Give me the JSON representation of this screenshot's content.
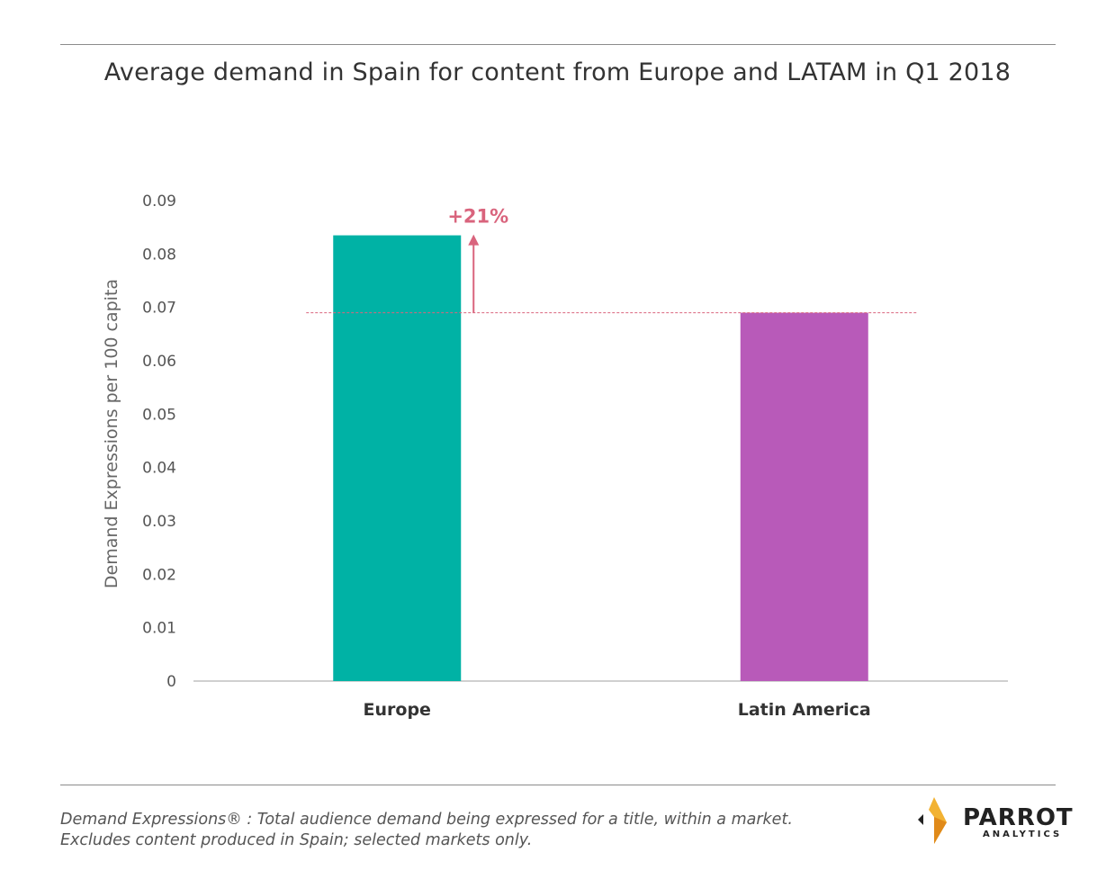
{
  "title": "Average demand in Spain for content from Europe and LATAM in Q1 2018",
  "chart_data": {
    "type": "bar",
    "categories": [
      "Europe",
      "Latin America"
    ],
    "values": [
      0.0835,
      0.069
    ],
    "colors": [
      "#00b2a5",
      "#b85ab9"
    ],
    "ylabel": "Demand Expressions per 100 capita",
    "ylim": [
      0,
      0.09
    ],
    "yticks": [
      "0",
      "0.01",
      "0.02",
      "0.03",
      "0.04",
      "0.05",
      "0.06",
      "0.07",
      "0.08",
      "0.09"
    ],
    "reference_line": {
      "value": 0.069,
      "color": "#d9647d",
      "style": "dashed"
    },
    "annotation": {
      "text": "+21%",
      "color": "#d9647d",
      "from": 0.069,
      "to": 0.0835
    },
    "grid": false
  },
  "footnote": {
    "line1": "Demand Expressions® :  Total audience demand being expressed for a title, within a market.",
    "line2": "Excludes content produced in Spain; selected markets only."
  },
  "logo": {
    "name": "PARROT",
    "sub": "ANALYTICS"
  }
}
